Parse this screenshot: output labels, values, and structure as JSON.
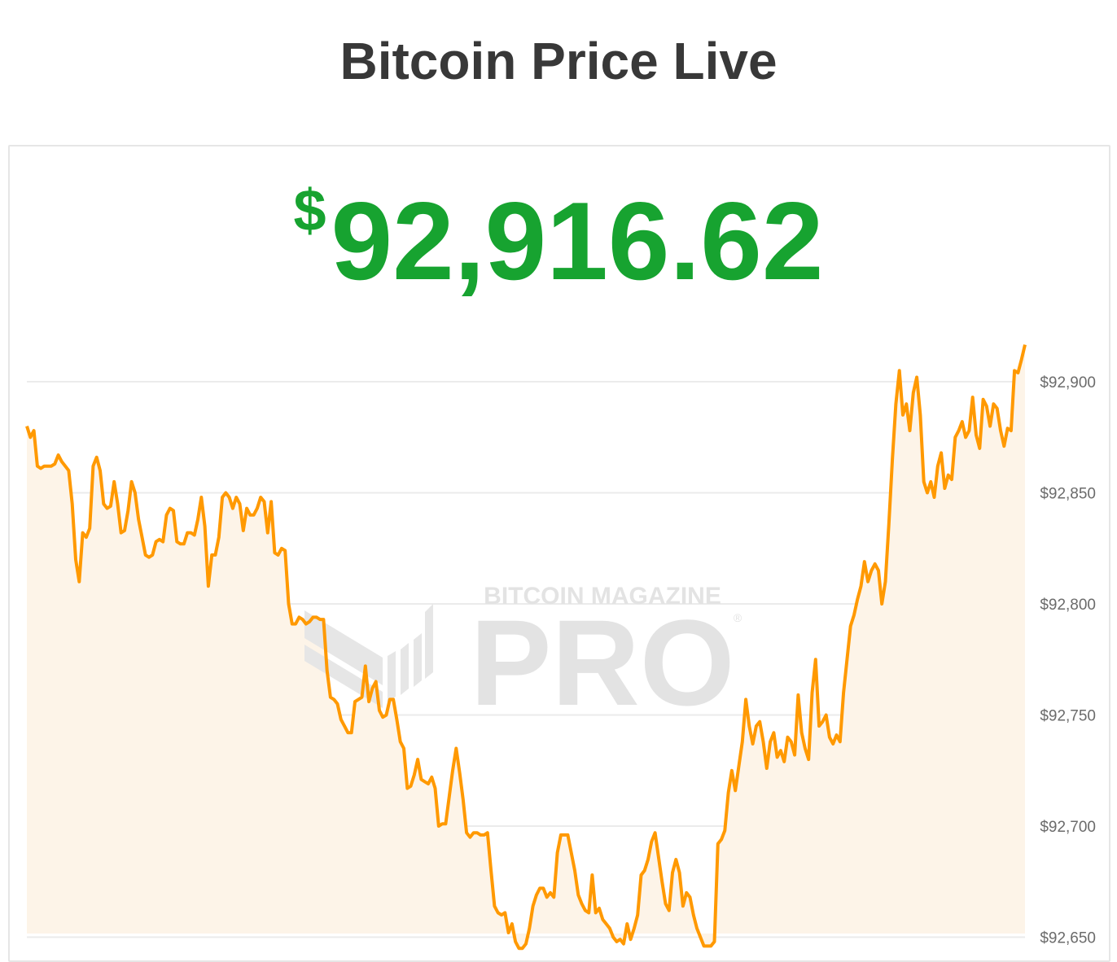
{
  "page": {
    "title": "Bitcoin Price Live"
  },
  "price_display": {
    "currency_symbol": "$",
    "value": "92,916.62"
  },
  "watermark": {
    "line1": "BITCOIN MAGAZINE",
    "line2": "PRO",
    "mark": "®"
  },
  "colors": {
    "line": "#ff9900",
    "fill": "#fdf4e8",
    "price": "#17a330",
    "grid": "#ebebeb",
    "tick_text": "#6b6b6b",
    "watermark": "#e6e6e6"
  },
  "chart_data": {
    "type": "area",
    "title": "",
    "xlabel": "",
    "ylabel": "",
    "y_axis_position": "right",
    "grid": true,
    "ylim": [
      92645,
      92933
    ],
    "y_ticks": [
      92650,
      92700,
      92750,
      92800,
      92850,
      92900
    ],
    "y_tick_labels": [
      "$92,650",
      "$92,700",
      "$92,750",
      "$92,800",
      "$92,850",
      "$92,900"
    ],
    "series": [
      {
        "values": [
          92880,
          92875,
          92878,
          92862,
          92861,
          92862,
          92862,
          92862,
          92863,
          92867,
          92864,
          92862,
          92860,
          92845,
          92820,
          92810,
          92832,
          92830,
          92834,
          92862,
          92866,
          92860,
          92845,
          92843,
          92844,
          92855,
          92845,
          92832,
          92833,
          92842,
          92855,
          92850,
          92838,
          92830,
          92822,
          92821,
          92822,
          92828,
          92829,
          92828,
          92840,
          92843,
          92842,
          92828,
          92827,
          92827,
          92832,
          92832,
          92831,
          92838,
          92848,
          92835,
          92808,
          92822,
          92822,
          92830,
          92848,
          92850,
          92848,
          92843,
          92848,
          92845,
          92833,
          92843,
          92840,
          92840,
          92843,
          92848,
          92846,
          92832,
          92846,
          92823,
          92822,
          92825,
          92824,
          92800,
          92791,
          92791,
          92794,
          92793,
          92791,
          92792,
          92794,
          92794,
          92793,
          92793,
          92770,
          92758,
          92757,
          92755,
          92748,
          92745,
          92742,
          92742,
          92756,
          92757,
          92758,
          92772,
          92756,
          92762,
          92765,
          92752,
          92749,
          92750,
          92757,
          92757,
          92748,
          92738,
          92735,
          92717,
          92718,
          92723,
          92730,
          92721,
          92720,
          92719,
          92722,
          92717,
          92700,
          92701,
          92701,
          92713,
          92725,
          92735,
          92724,
          92712,
          92697,
          92695,
          92697,
          92697,
          92696,
          92696,
          92697,
          92680,
          92664,
          92661,
          92660,
          92661,
          92652,
          92656,
          92648,
          92645,
          92645,
          92647,
          92654,
          92664,
          92669,
          92672,
          92672,
          92668,
          92670,
          92668,
          92688,
          92696,
          92696,
          92696,
          92688,
          92680,
          92669,
          92665,
          92662,
          92661,
          92678,
          92661,
          92663,
          92658,
          92656,
          92654,
          92650,
          92648,
          92649,
          92647,
          92656,
          92649,
          92654,
          92660,
          92678,
          92680,
          92685,
          92693,
          92697,
          92686,
          92675,
          92665,
          92662,
          92679,
          92685,
          92679,
          92664,
          92670,
          92668,
          92660,
          92654,
          92650,
          92646,
          92646,
          92646,
          92648,
          92692,
          92694,
          92698,
          92715,
          92725,
          92716,
          92727,
          92738,
          92757,
          92745,
          92737,
          92745,
          92747,
          92738,
          92726,
          92738,
          92742,
          92731,
          92734,
          92729,
          92740,
          92738,
          92732,
          92759,
          92742,
          92735,
          92730,
          92760,
          92775,
          92745,
          92747,
          92750,
          92740,
          92737,
          92741,
          92738,
          92760,
          92775,
          92790,
          92795,
          92802,
          92808,
          92819,
          92810,
          92815,
          92818,
          92815,
          92800,
          92810,
          92836,
          92865,
          92890,
          92905,
          92885,
          92890,
          92878,
          92895,
          92902,
          92885,
          92855,
          92850,
          92855,
          92848,
          92862,
          92868,
          92852,
          92858,
          92856,
          92875,
          92878,
          92882,
          92875,
          92878,
          92893,
          92876,
          92870,
          92892,
          92889,
          92880,
          92890,
          92888,
          92878,
          92871,
          92879,
          92878,
          92905,
          92904,
          92910,
          92916.62
        ]
      }
    ]
  }
}
